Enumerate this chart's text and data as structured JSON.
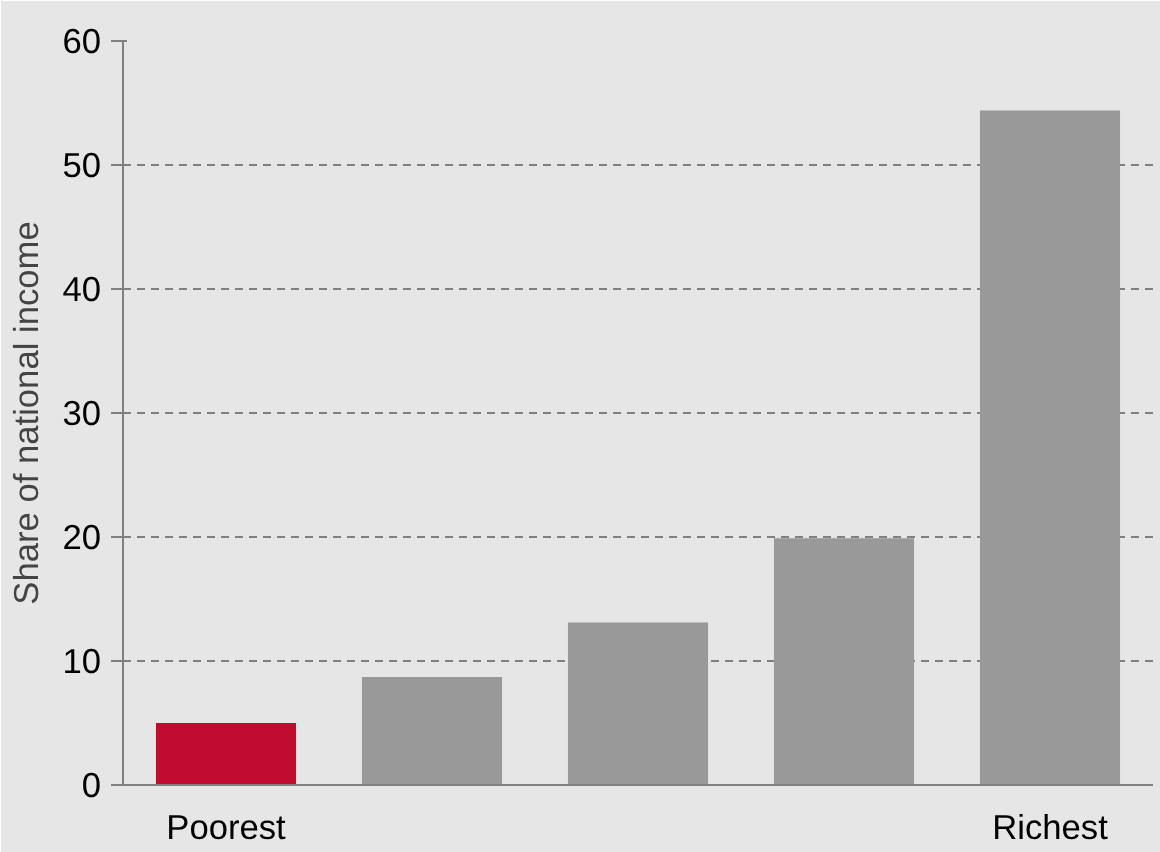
{
  "chart_data": {
    "type": "bar",
    "ylabel": "Share of national income",
    "categories": [
      "Poorest",
      null,
      null,
      null,
      "Richest"
    ],
    "values": [
      5.0,
      8.7,
      13.1,
      19.9,
      54.4
    ],
    "colors": [
      "#c00d2f",
      "#999999",
      "#999999",
      "#999999",
      "#999999"
    ],
    "ylim": [
      0,
      60
    ],
    "yticks": [
      0,
      10,
      20,
      30,
      40,
      50,
      60
    ],
    "grid": "y"
  }
}
